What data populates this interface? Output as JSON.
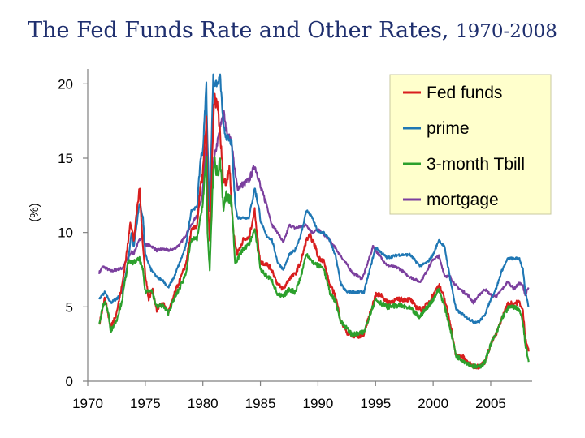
{
  "title": {
    "main": "The Fed Funds Rate and Other Rates,",
    "years": "1970-2008"
  },
  "chart_data": {
    "type": "line",
    "title": "The Fed Funds Rate and Other Rates, 1970-2008",
    "xlabel": "",
    "ylabel": "(%)",
    "xlim": [
      1970,
      2008.6
    ],
    "ylim": [
      0,
      21
    ],
    "x_ticks": [
      1970,
      1975,
      1980,
      1985,
      1990,
      1995,
      2000,
      2005
    ],
    "y_ticks": [
      0,
      5,
      10,
      15,
      20
    ],
    "legend_position": "top-right",
    "colors": {
      "fed_funds": "#d81e1e",
      "prime": "#1f77b4",
      "tbill": "#2ca02c",
      "mortgage": "#7b3f9e",
      "legend_bg": "#ffffcc"
    },
    "series": [
      {
        "name": "Fed funds",
        "key": "fed_funds",
        "x": [
          1971.0,
          1971.3,
          1971.5,
          1971.7,
          1972.0,
          1972.5,
          1973.0,
          1973.5,
          1973.7,
          1974.0,
          1974.5,
          1974.8,
          1975.0,
          1975.3,
          1975.6,
          1976.0,
          1976.5,
          1977.0,
          1977.5,
          1978.0,
          1978.5,
          1979.0,
          1979.5,
          1979.8,
          1980.0,
          1980.3,
          1980.4,
          1980.6,
          1980.9,
          1981.0,
          1981.3,
          1981.5,
          1981.8,
          1982.0,
          1982.3,
          1982.6,
          1982.8,
          1983.0,
          1983.5,
          1984.0,
          1984.5,
          1984.9,
          1985.0,
          1985.5,
          1986.0,
          1986.5,
          1987.0,
          1987.5,
          1988.0,
          1988.5,
          1989.0,
          1989.3,
          1989.8,
          1990.0,
          1990.5,
          1991.0,
          1991.5,
          1992.0,
          1992.5,
          1993.0,
          1993.5,
          1994.0,
          1994.5,
          1995.0,
          1995.5,
          1996.0,
          1997.0,
          1998.0,
          1998.5,
          1999.0,
          1999.5,
          2000.0,
          2000.5,
          2001.0,
          2001.5,
          2001.9,
          2002.0,
          2002.5,
          2003.0,
          2003.5,
          2004.0,
          2004.5,
          2005.0,
          2005.5,
          2006.0,
          2006.5,
          2007.0,
          2007.5,
          2007.8,
          2008.0,
          2008.3
        ],
        "values": [
          3.8,
          5.0,
          5.6,
          4.8,
          3.6,
          4.6,
          6.5,
          9.3,
          10.8,
          9.5,
          13.0,
          9.0,
          7.2,
          5.5,
          6.2,
          4.8,
          5.3,
          4.6,
          5.8,
          6.8,
          7.8,
          10.1,
          10.5,
          13.0,
          14.0,
          17.5,
          12.5,
          9.5,
          17.0,
          19.0,
          18.5,
          16.5,
          13.5,
          13.3,
          14.5,
          10.5,
          9.2,
          8.6,
          9.5,
          9.6,
          11.5,
          8.5,
          8.0,
          7.9,
          7.5,
          6.5,
          6.2,
          6.9,
          7.2,
          8.0,
          9.5,
          9.8,
          9.0,
          8.3,
          8.1,
          6.5,
          5.8,
          4.0,
          3.3,
          3.0,
          3.0,
          3.2,
          4.5,
          5.8,
          5.8,
          5.3,
          5.5,
          5.5,
          5.0,
          4.8,
          5.2,
          5.8,
          6.5,
          5.5,
          3.9,
          2.0,
          1.7,
          1.7,
          1.25,
          1.0,
          1.0,
          1.3,
          2.5,
          3.2,
          4.3,
          5.2,
          5.25,
          5.3,
          4.7,
          3.0,
          2.0
        ]
      },
      {
        "name": "prime",
        "key": "prime",
        "x": [
          1971.0,
          1971.3,
          1971.5,
          1972.0,
          1972.5,
          1973.0,
          1973.5,
          1973.8,
          1974.0,
          1974.5,
          1974.8,
          1975.0,
          1975.5,
          1976.0,
          1976.5,
          1977.0,
          1977.5,
          1978.0,
          1978.5,
          1979.0,
          1979.5,
          1979.8,
          1980.0,
          1980.3,
          1980.4,
          1980.6,
          1980.9,
          1981.0,
          1981.3,
          1981.5,
          1981.8,
          1982.0,
          1982.5,
          1982.8,
          1983.0,
          1984.0,
          1984.5,
          1984.9,
          1985.0,
          1985.5,
          1986.0,
          1986.5,
          1987.0,
          1987.5,
          1988.0,
          1988.5,
          1989.0,
          1989.5,
          1990.0,
          1990.5,
          1991.0,
          1991.5,
          1992.0,
          1992.5,
          1993.0,
          1994.0,
          1994.5,
          1995.0,
          1996.0,
          1997.0,
          1998.0,
          1998.8,
          1999.0,
          1999.5,
          2000.0,
          2000.5,
          2001.0,
          2001.5,
          2002.0,
          2003.0,
          2003.5,
          2004.0,
          2004.5,
          2005.0,
          2005.5,
          2006.0,
          2006.5,
          2007.0,
          2007.5,
          2007.8,
          2008.0,
          2008.3
        ],
        "values": [
          5.5,
          5.8,
          6.0,
          5.3,
          5.5,
          6.0,
          8.0,
          10.0,
          9.0,
          12.0,
          11.0,
          8.5,
          7.5,
          7.0,
          6.8,
          6.3,
          7.0,
          8.0,
          9.0,
          11.5,
          11.7,
          15.0,
          15.5,
          20.0,
          16.0,
          11.5,
          20.5,
          20.0,
          20.0,
          20.5,
          17.0,
          16.5,
          16.0,
          12.0,
          11.0,
          11.0,
          13.0,
          11.5,
          10.8,
          9.8,
          9.5,
          8.0,
          7.5,
          8.5,
          8.8,
          9.8,
          11.5,
          11.0,
          10.0,
          10.0,
          9.5,
          8.5,
          6.5,
          6.0,
          6.0,
          6.0,
          7.5,
          9.0,
          8.3,
          8.5,
          8.5,
          7.8,
          7.8,
          8.0,
          8.5,
          9.5,
          9.0,
          6.8,
          4.8,
          4.25,
          4.0,
          4.0,
          4.5,
          5.5,
          6.3,
          7.5,
          8.25,
          8.25,
          8.25,
          7.5,
          6.0,
          5.0
        ]
      },
      {
        "name": "3-month Tbill",
        "key": "tbill",
        "x": [
          1971.0,
          1971.3,
          1971.5,
          1971.8,
          1972.0,
          1972.5,
          1973.0,
          1973.5,
          1974.0,
          1974.5,
          1974.8,
          1975.0,
          1975.5,
          1976.0,
          1976.5,
          1977.0,
          1977.5,
          1978.0,
          1978.5,
          1979.0,
          1979.5,
          1980.0,
          1980.3,
          1980.4,
          1980.6,
          1980.9,
          1981.0,
          1981.3,
          1981.5,
          1981.8,
          1982.0,
          1982.5,
          1982.8,
          1983.0,
          1983.5,
          1984.0,
          1984.5,
          1984.9,
          1985.0,
          1985.5,
          1986.0,
          1986.5,
          1987.0,
          1987.5,
          1988.0,
          1988.5,
          1989.0,
          1989.5,
          1990.0,
          1990.5,
          1991.0,
          1991.5,
          1992.0,
          1993.0,
          1994.0,
          1994.5,
          1995.0,
          1996.0,
          1997.0,
          1998.0,
          1998.8,
          1999.0,
          2000.0,
          2000.5,
          2001.0,
          2001.5,
          2002.0,
          2003.0,
          2003.5,
          2004.0,
          2004.5,
          2005.0,
          2005.5,
          2006.0,
          2006.5,
          2007.0,
          2007.5,
          2007.8,
          2008.0,
          2008.3
        ],
        "values": [
          3.8,
          5.0,
          5.4,
          4.5,
          3.4,
          4.1,
          5.5,
          8.0,
          8.0,
          8.2,
          7.4,
          6.0,
          6.2,
          5.0,
          5.1,
          4.6,
          5.5,
          6.3,
          7.2,
          9.5,
          9.6,
          12.0,
          15.0,
          10.0,
          7.5,
          14.0,
          14.8,
          13.8,
          15.0,
          11.5,
          12.5,
          12.0,
          8.0,
          8.2,
          8.9,
          9.2,
          10.2,
          8.2,
          7.5,
          7.1,
          6.8,
          5.8,
          5.7,
          6.2,
          6.0,
          7.0,
          8.6,
          8.0,
          7.8,
          7.6,
          6.0,
          5.4,
          4.0,
          3.1,
          3.3,
          4.5,
          5.5,
          5.0,
          5.1,
          4.9,
          4.3,
          4.5,
          5.5,
          6.2,
          5.0,
          3.5,
          1.7,
          1.2,
          1.0,
          0.95,
          1.3,
          2.5,
          3.2,
          4.3,
          4.9,
          5.0,
          4.8,
          3.9,
          2.5,
          1.3
        ]
      },
      {
        "name": "mortgage",
        "key": "mortgage",
        "x": [
          1971.0,
          1971.3,
          1971.6,
          1972.0,
          1972.5,
          1973.0,
          1973.5,
          1973.8,
          1974.0,
          1974.5,
          1974.8,
          1975.0,
          1975.5,
          1976.0,
          1976.5,
          1977.0,
          1977.5,
          1978.0,
          1978.5,
          1979.0,
          1979.5,
          1980.0,
          1980.3,
          1980.5,
          1980.9,
          1981.0,
          1981.5,
          1981.8,
          1982.0,
          1982.5,
          1982.8,
          1983.0,
          1984.0,
          1984.5,
          1984.9,
          1985.0,
          1985.5,
          1986.0,
          1986.5,
          1987.0,
          1987.5,
          1988.0,
          1989.0,
          1989.5,
          1990.0,
          1991.0,
          1992.0,
          1993.0,
          1993.8,
          1994.0,
          1994.8,
          1995.0,
          1996.0,
          1997.0,
          1998.0,
          1998.8,
          1999.0,
          2000.0,
          2000.5,
          2001.0,
          2001.5,
          2002.0,
          2003.0,
          2003.5,
          2004.0,
          2004.5,
          2005.0,
          2005.5,
          2006.0,
          2006.5,
          2007.0,
          2007.5,
          2007.8,
          2008.0,
          2008.3
        ],
        "values": [
          7.3,
          7.7,
          7.6,
          7.4,
          7.5,
          7.6,
          8.3,
          8.7,
          8.6,
          9.5,
          9.8,
          9.2,
          9.1,
          8.8,
          8.9,
          8.8,
          8.9,
          9.2,
          9.8,
          10.5,
          11.2,
          12.8,
          16.0,
          12.5,
          14.5,
          15.0,
          17.0,
          18.2,
          17.0,
          16.0,
          14.0,
          13.0,
          13.5,
          14.5,
          13.5,
          13.0,
          12.0,
          10.5,
          10.0,
          9.3,
          10.5,
          10.3,
          10.5,
          10.0,
          10.2,
          9.5,
          8.4,
          7.3,
          6.9,
          7.2,
          9.1,
          8.8,
          7.8,
          7.6,
          7.0,
          6.7,
          6.8,
          8.2,
          8.4,
          7.1,
          7.0,
          6.4,
          5.8,
          5.3,
          5.8,
          6.2,
          5.8,
          5.7,
          6.2,
          6.7,
          6.2,
          6.6,
          6.4,
          5.8,
          6.3
        ]
      }
    ]
  }
}
